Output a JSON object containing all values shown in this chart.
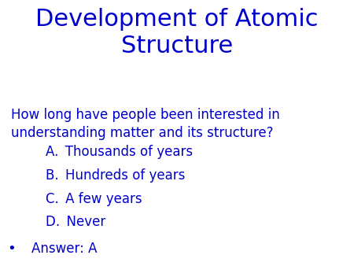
{
  "background_color": "#ffffff",
  "title_line1": "Development of Atomic",
  "title_line2": "Structure",
  "title_color": "#0000cc",
  "title_fontsize": 22,
  "question_line1": "How long have people been interested in",
  "question_line2": "understanding matter and its structure?",
  "question_color": "#0000cc",
  "question_fontsize": 12,
  "options": [
    "A. Thousands of years",
    "B. Hundreds of years",
    "C. A few years",
    "D. Never"
  ],
  "options_color": "#0000cc",
  "options_fontsize": 12,
  "answer_text": "Answer: A",
  "answer_color": "#0000cc",
  "answer_fontsize": 12,
  "bullet": "•"
}
